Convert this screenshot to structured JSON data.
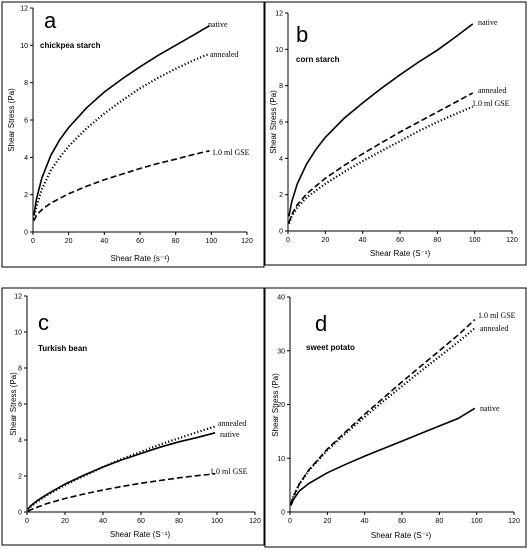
{
  "chart_data": [
    {
      "type": "line",
      "panel": "a",
      "title": "chickpea starch",
      "xlabel": "Shear Rate (s⁻¹)",
      "ylabel": "Shear Stress (Pa)",
      "xlim": [
        0,
        120
      ],
      "ylim": [
        0,
        12
      ],
      "xticks": [
        0,
        20,
        40,
        60,
        80,
        100,
        120
      ],
      "yticks": [
        0,
        2,
        4,
        6,
        8,
        10,
        12
      ],
      "grid": false,
      "series": [
        {
          "name": "native",
          "style": "solid",
          "x": [
            0.5,
            2,
            5,
            10,
            15,
            20,
            30,
            40,
            50,
            60,
            70,
            80,
            90,
            99
          ],
          "y": [
            0.9,
            1.8,
            2.9,
            4.1,
            4.95,
            5.6,
            6.65,
            7.5,
            8.2,
            8.85,
            9.45,
            10.0,
            10.55,
            11.05
          ]
        },
        {
          "name": "annealed",
          "style": "dotted",
          "x": [
            0.5,
            2,
            5,
            10,
            15,
            20,
            30,
            40,
            50,
            60,
            70,
            80,
            90,
            99
          ],
          "y": [
            0.7,
            1.4,
            2.3,
            3.3,
            4.0,
            4.6,
            5.55,
            6.35,
            7.05,
            7.7,
            8.25,
            8.75,
            9.2,
            9.55
          ]
        },
        {
          "name": "1.0 ml GSE",
          "style": "dashed",
          "x": [
            0.5,
            2,
            5,
            10,
            20,
            30,
            40,
            50,
            60,
            70,
            80,
            90,
            99
          ],
          "y": [
            0.6,
            0.9,
            1.2,
            1.55,
            2.05,
            2.45,
            2.8,
            3.1,
            3.4,
            3.67,
            3.9,
            4.15,
            4.35
          ]
        }
      ]
    },
    {
      "type": "line",
      "panel": "b",
      "title": "corn starch",
      "xlabel": "Shear Rate (S⁻¹)",
      "ylabel": "Shear Stress (Pa)",
      "xlim": [
        0,
        120
      ],
      "ylim": [
        0,
        12
      ],
      "xticks": [
        0,
        20,
        40,
        60,
        80,
        100,
        120
      ],
      "yticks": [
        0,
        2,
        4,
        6,
        8,
        10,
        12
      ],
      "grid": false,
      "series": [
        {
          "name": "native",
          "style": "solid",
          "x": [
            0.5,
            2,
            5,
            10,
            15,
            20,
            30,
            40,
            50,
            60,
            70,
            80,
            90,
            99
          ],
          "y": [
            0.8,
            1.6,
            2.6,
            3.7,
            4.5,
            5.15,
            6.2,
            7.05,
            7.85,
            8.6,
            9.3,
            9.95,
            10.7,
            11.4
          ]
        },
        {
          "name": "annealed",
          "style": "dashed",
          "x": [
            0.5,
            2,
            5,
            10,
            20,
            30,
            40,
            50,
            60,
            70,
            80,
            90,
            99
          ],
          "y": [
            0.45,
            0.9,
            1.45,
            2.05,
            2.9,
            3.6,
            4.25,
            4.85,
            5.45,
            6.0,
            6.55,
            7.1,
            7.6
          ]
        },
        {
          "name": "1.0 ml GSE",
          "style": "dotted",
          "x": [
            0.5,
            2,
            5,
            10,
            20,
            30,
            40,
            50,
            60,
            70,
            80,
            90,
            99
          ],
          "y": [
            0.4,
            0.8,
            1.3,
            1.85,
            2.6,
            3.25,
            3.85,
            4.4,
            4.95,
            5.5,
            6.0,
            6.45,
            6.85
          ]
        }
      ]
    },
    {
      "type": "line",
      "panel": "c",
      "title": "Turkish bean",
      "xlabel": "Shear Rate (S⁻¹)",
      "ylabel": "Shear Stress (Pa)",
      "xlim": [
        0,
        120
      ],
      "ylim": [
        0,
        12
      ],
      "xticks": [
        0,
        20,
        40,
        60,
        80,
        100,
        120
      ],
      "yticks": [
        0,
        2,
        4,
        6,
        8,
        10,
        12
      ],
      "grid": false,
      "series": [
        {
          "name": "annealed",
          "style": "dotted",
          "x": [
            0.5,
            2,
            5,
            10,
            20,
            30,
            40,
            50,
            60,
            70,
            80,
            90,
            99
          ],
          "y": [
            0.15,
            0.3,
            0.55,
            0.9,
            1.5,
            2.0,
            2.5,
            2.95,
            3.35,
            3.75,
            4.1,
            4.45,
            4.75
          ]
        },
        {
          "name": "native",
          "style": "solid",
          "x": [
            0.5,
            2,
            5,
            10,
            20,
            30,
            40,
            50,
            60,
            70,
            80,
            90,
            99
          ],
          "y": [
            0.15,
            0.35,
            0.6,
            0.95,
            1.55,
            2.05,
            2.5,
            2.9,
            3.25,
            3.6,
            3.9,
            4.15,
            4.4
          ]
        },
        {
          "name": "1.0 ml GSE",
          "style": "dashed",
          "x": [
            0.5,
            2,
            5,
            10,
            20,
            30,
            40,
            50,
            60,
            70,
            80,
            90,
            99
          ],
          "y": [
            0.05,
            0.12,
            0.25,
            0.45,
            0.75,
            1.0,
            1.22,
            1.42,
            1.6,
            1.75,
            1.9,
            2.02,
            2.12
          ]
        }
      ]
    },
    {
      "type": "line",
      "panel": "d",
      "title": "sweet potato",
      "xlabel": "Shear Rate (S⁻¹)",
      "ylabel": "Shear Stress (Pa)",
      "xlim": [
        0,
        120
      ],
      "ylim": [
        0,
        40
      ],
      "xticks": [
        0,
        20,
        40,
        60,
        80,
        100,
        120
      ],
      "yticks": [
        0,
        10,
        20,
        30,
        40
      ],
      "grid": false,
      "series": [
        {
          "name": "1.0 ml GSE",
          "style": "dashed",
          "x": [
            0.5,
            2,
            5,
            10,
            20,
            30,
            40,
            50,
            60,
            70,
            80,
            90,
            99
          ],
          "y": [
            1.5,
            3.0,
            5.2,
            7.8,
            11.7,
            15.0,
            18.2,
            21.2,
            24.2,
            27.1,
            30.0,
            32.9,
            35.8
          ]
        },
        {
          "name": "annealed",
          "style": "dotted",
          "x": [
            0.5,
            2,
            5,
            10,
            20,
            30,
            40,
            50,
            60,
            70,
            80,
            90,
            99
          ],
          "y": [
            1.5,
            3.0,
            5.2,
            7.7,
            11.5,
            14.7,
            17.7,
            20.6,
            23.4,
            26.2,
            28.9,
            31.6,
            34.2
          ]
        },
        {
          "name": "native",
          "style": "solid",
          "x": [
            0.5,
            2,
            5,
            10,
            20,
            30,
            40,
            50,
            60,
            70,
            80,
            90,
            99
          ],
          "y": [
            1.2,
            2.4,
            3.9,
            5.3,
            7.3,
            8.9,
            10.4,
            11.8,
            13.2,
            14.6,
            16.0,
            17.4,
            19.3
          ]
        }
      ]
    }
  ]
}
